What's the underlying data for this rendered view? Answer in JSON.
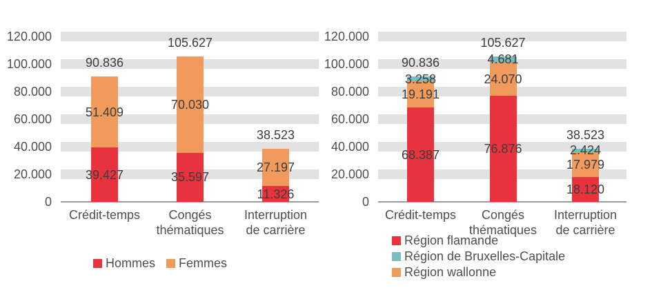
{
  "figure": {
    "background": "#FFFFFF",
    "grid_band_color": "#E2E2E2",
    "axis_line_color": "#9A9A9A",
    "axis_text_color": "#4E4E4E",
    "data_label_color": "#3C3C3C",
    "accent_red": "#E8333E",
    "accent_orange": "#F09A5C",
    "accent_teal": "#7CBCBE"
  },
  "chart_data": [
    {
      "id": "by-gender",
      "type": "bar",
      "stacked": true,
      "title": "",
      "grid": "horizontal-bands",
      "categories": [
        "Crédit-temps",
        "Congés thématiques",
        "Interruption de carrière"
      ],
      "category_lines": [
        [
          "Crédit-temps"
        ],
        [
          "Congés",
          "thématiques"
        ],
        [
          "Interruption",
          "de carrière"
        ]
      ],
      "series": [
        {
          "name": "Hommes",
          "color": "#E8333E",
          "values": [
            39427,
            35597,
            11326
          ],
          "value_labels": [
            "39.427",
            "35.597",
            "11.326"
          ]
        },
        {
          "name": "Femmes",
          "color": "#F09A5C",
          "values": [
            51409,
            70030,
            27197
          ],
          "value_labels": [
            "51.409",
            "70.030",
            "27.197"
          ]
        }
      ],
      "stack_order": [
        "Hommes",
        "Femmes"
      ],
      "totals": [
        90836,
        105627,
        38523
      ],
      "total_labels": [
        "90.836",
        "105.627",
        "38.523"
      ],
      "y_axis": {
        "min": 0,
        "max": 120000,
        "step": 20000,
        "tick_labels": [
          "0",
          "20.000",
          "40.000",
          "60.000",
          "80.000",
          "100.000",
          "120.000"
        ]
      },
      "legend": {
        "position": "bottom-center",
        "entries": [
          {
            "label": "Hommes",
            "color": "#E8333E"
          },
          {
            "label": "Femmes",
            "color": "#F09A5C"
          }
        ]
      }
    },
    {
      "id": "by-region",
      "type": "bar",
      "stacked": true,
      "title": "",
      "grid": "horizontal-bands",
      "categories": [
        "Crédit-temps",
        "Congés thématiques",
        "Interruption de carrière"
      ],
      "category_lines": [
        [
          "Crédit-temps"
        ],
        [
          "Congés",
          "thématiques"
        ],
        [
          "Interruption",
          "de carrière"
        ]
      ],
      "series": [
        {
          "name": "Région flamande",
          "color": "#E8333E",
          "values": [
            68387,
            76876,
            18120
          ],
          "value_labels": [
            "68.387",
            "76.876",
            "18.120"
          ]
        },
        {
          "name": "Région de Bruxelles-Capitale",
          "color": "#7CBCBE",
          "values": [
            3258,
            4681,
            2424
          ],
          "value_labels": [
            "3.258",
            "4.681",
            "2.424"
          ]
        },
        {
          "name": "Région wallonne",
          "color": "#F09A5C",
          "values": [
            19191,
            24070,
            17979
          ],
          "value_labels": [
            "19.191",
            "24.070",
            "17.979"
          ]
        }
      ],
      "stack_order": [
        "Région flamande",
        "Région wallonne",
        "Région de Bruxelles-Capitale"
      ],
      "totals": [
        90836,
        105627,
        38523
      ],
      "total_labels": [
        "90.836",
        "105.627",
        "38.523"
      ],
      "y_axis": {
        "min": 0,
        "max": 120000,
        "step": 20000,
        "tick_labels": [
          "0",
          "20.000",
          "40.000",
          "60.000",
          "80.000",
          "100.000",
          "120.000"
        ]
      },
      "legend": {
        "position": "bottom-left",
        "entries": [
          {
            "label": "Région flamande",
            "color": "#E8333E"
          },
          {
            "label": "Région de Bruxelles-Capitale",
            "color": "#7CBCBE"
          },
          {
            "label": "Région wallonne",
            "color": "#F09A5C"
          }
        ]
      }
    }
  ]
}
